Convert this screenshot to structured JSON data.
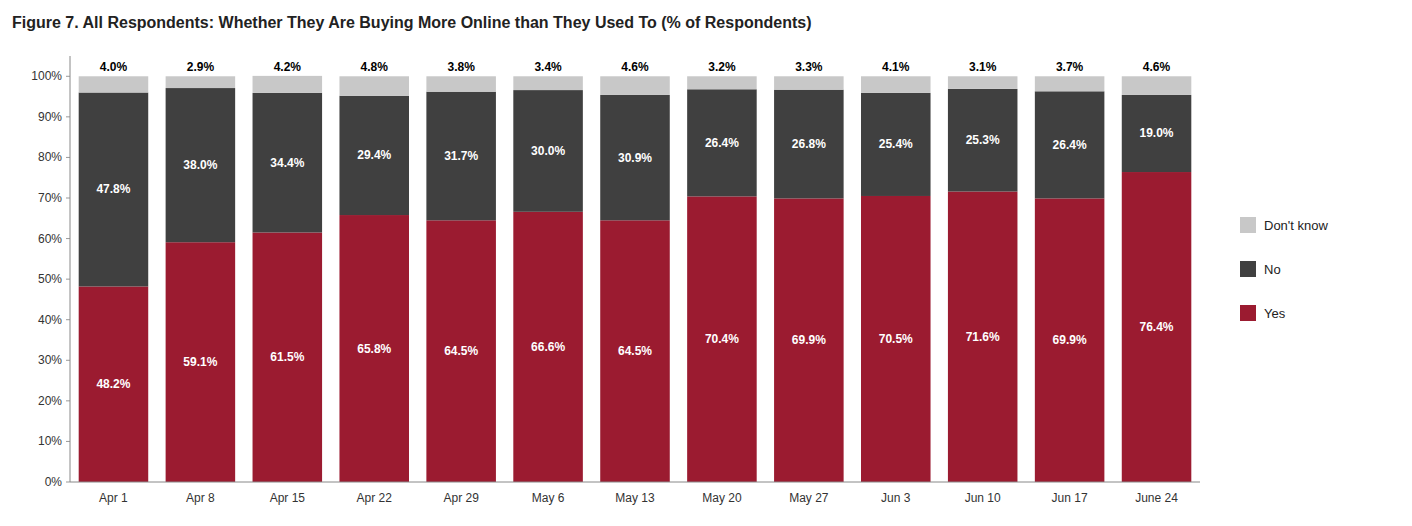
{
  "chart_data": {
    "type": "bar",
    "stacked": true,
    "title": "Figure 7. All Respondents: Whether They Are Buying More Online than They Used To (% of Respondents)",
    "categories": [
      "Apr 1",
      "Apr 8",
      "Apr 15",
      "Apr 22",
      "Apr 29",
      "May 6",
      "May 13",
      "May 20",
      "May 27",
      "Jun 3",
      "Jun 10",
      "Jun 17",
      "June 24"
    ],
    "series": [
      {
        "name": "Yes",
        "color": "#9B1B30",
        "values": [
          48.2,
          59.1,
          61.5,
          65.8,
          64.5,
          66.6,
          64.5,
          70.4,
          69.9,
          70.5,
          71.6,
          69.9,
          76.4
        ],
        "value_labels": [
          "48.2%",
          "59.1%",
          "61.5%",
          "65.8%",
          "64.5%",
          "66.6%",
          "64.5%",
          "70.4%",
          "69.9%",
          "70.5%",
          "71.6%",
          "69.9%",
          "76.4%"
        ]
      },
      {
        "name": "No",
        "color": "#404040",
        "values": [
          47.8,
          38.0,
          34.4,
          29.4,
          31.7,
          30.0,
          30.9,
          26.4,
          26.8,
          25.4,
          25.3,
          26.4,
          19.0
        ],
        "value_labels": [
          "47.8%",
          "38.0%",
          "34.4%",
          "29.4%",
          "31.7%",
          "30.0%",
          "30.9%",
          "26.4%",
          "26.8%",
          "25.4%",
          "25.3%",
          "26.4%",
          "19.0%"
        ]
      },
      {
        "name": "Don't know",
        "color": "#C8C8C8",
        "values": [
          4.0,
          2.9,
          4.2,
          4.8,
          3.8,
          3.4,
          4.6,
          3.2,
          3.3,
          4.1,
          3.1,
          3.7,
          4.6
        ],
        "value_labels": [
          "4.0%",
          "2.9%",
          "4.2%",
          "4.8%",
          "3.8%",
          "3.4%",
          "4.6%",
          "3.2%",
          "3.3%",
          "4.1%",
          "3.1%",
          "3.7%",
          "4.6%"
        ]
      }
    ],
    "ylim": [
      0,
      105
    ],
    "yticks": [
      {
        "value": 0,
        "label": "0%"
      },
      {
        "value": 10,
        "label": "10%"
      },
      {
        "value": 20,
        "label": "20%"
      },
      {
        "value": 30,
        "label": "30%"
      },
      {
        "value": 40,
        "label": "40%"
      },
      {
        "value": 50,
        "label": "50%"
      },
      {
        "value": 60,
        "label": "60%"
      },
      {
        "value": 70,
        "label": "70%"
      },
      {
        "value": 80,
        "label": "80%"
      },
      {
        "value": 90,
        "label": "90%"
      },
      {
        "value": 100,
        "label": "100%"
      }
    ],
    "grid": false,
    "legend": "right",
    "data_labels": true
  }
}
